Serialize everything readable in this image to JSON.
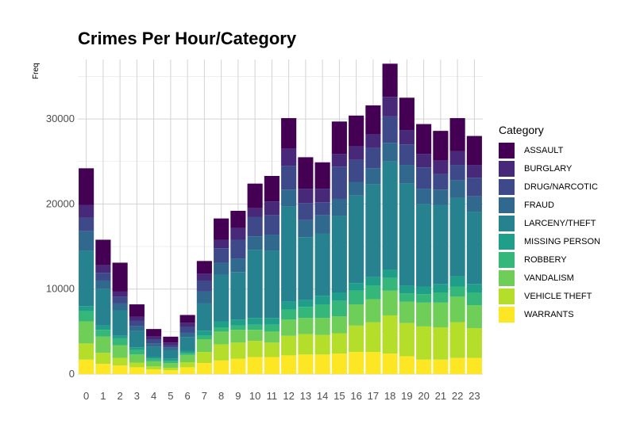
{
  "chart_data": {
    "type": "bar",
    "stacked": true,
    "title": "Crimes Per Hour/Category",
    "xlabel": "",
    "ylabel": "Freq",
    "ylim": [
      0,
      37000
    ],
    "yticks": [
      0,
      10000,
      20000,
      30000
    ],
    "grid": true,
    "legend_title": "Category",
    "legend_position": "right",
    "categories": [
      "0",
      "1",
      "2",
      "3",
      "4",
      "5",
      "6",
      "7",
      "8",
      "9",
      "10",
      "11",
      "12",
      "13",
      "14",
      "15",
      "16",
      "17",
      "18",
      "19",
      "20",
      "21",
      "22",
      "23"
    ],
    "series": [
      {
        "name": "WARRANTS",
        "color": "#fde725",
        "values": [
          1700,
          1200,
          1000,
          800,
          550,
          450,
          800,
          1300,
          1600,
          1800,
          2000,
          2000,
          2200,
          2300,
          2300,
          2400,
          2600,
          2600,
          2400,
          2100,
          1700,
          1700,
          1900,
          1900
        ]
      },
      {
        "name": "VEHICLE THEFT",
        "color": "#b5de2b",
        "values": [
          1900,
          1300,
          900,
          550,
          350,
          300,
          600,
          1300,
          1900,
          1900,
          1900,
          1700,
          2300,
          2400,
          2300,
          2400,
          3100,
          3500,
          4500,
          3900,
          3900,
          3800,
          4200,
          3500
        ]
      },
      {
        "name": "VANDALISM",
        "color": "#6ece58",
        "values": [
          2600,
          1900,
          1500,
          950,
          600,
          550,
          850,
          1500,
          1500,
          1500,
          1300,
          1300,
          1900,
          1900,
          2000,
          2000,
          2500,
          2700,
          2900,
          2500,
          2800,
          2900,
          3000,
          2700
        ]
      },
      {
        "name": "ROBBERY",
        "color": "#35b779",
        "values": [
          1200,
          800,
          800,
          550,
          300,
          250,
          200,
          400,
          500,
          500,
          600,
          800,
          1200,
          1300,
          1600,
          1800,
          1600,
          1600,
          1500,
          1000,
          1000,
          1200,
          1200,
          1500
        ]
      },
      {
        "name": "MISSING PERSON",
        "color": "#1f9e89",
        "values": [
          600,
          500,
          300,
          300,
          200,
          250,
          300,
          600,
          700,
          700,
          800,
          800,
          900,
          800,
          1000,
          1000,
          900,
          1000,
          1000,
          900,
          900,
          1000,
          1200,
          1000
        ]
      },
      {
        "name": "LARCENY/THEFT",
        "color": "#26828e",
        "values": [
          6500,
          4300,
          3000,
          1900,
          1200,
          1000,
          1600,
          3200,
          5500,
          5600,
          8000,
          7900,
          11200,
          7400,
          7300,
          9000,
          10300,
          10900,
          12700,
          12000,
          9700,
          9300,
          9200,
          8500
        ]
      },
      {
        "name": "FRAUD",
        "color": "#31688e",
        "values": [
          2300,
          1000,
          800,
          600,
          400,
          300,
          500,
          1400,
          1400,
          1600,
          1600,
          1900,
          2000,
          2000,
          2200,
          2000,
          1600,
          1900,
          2200,
          2200,
          1800,
          1800,
          2100,
          1800
        ]
      },
      {
        "name": "DRUG/NARCOTIC",
        "color": "#3e4989",
        "values": [
          1600,
          900,
          800,
          600,
          500,
          300,
          700,
          1300,
          1700,
          2200,
          2300,
          2300,
          2800,
          2000,
          1500,
          3800,
          2600,
          2400,
          3100,
          2400,
          2500,
          1800,
          1800,
          2200
        ]
      },
      {
        "name": "BURGLARY",
        "color": "#482878",
        "values": [
          1500,
          900,
          600,
          500,
          300,
          300,
          500,
          800,
          1000,
          1400,
          1000,
          1600,
          2000,
          1700,
          1600,
          1500,
          1600,
          1600,
          2300,
          1700,
          1600,
          1600,
          1600,
          1500
        ]
      },
      {
        "name": "ASSAULT",
        "color": "#440154",
        "values": [
          4300,
          3000,
          3400,
          1450,
          900,
          700,
          900,
          1500,
          2500,
          2000,
          2900,
          3000,
          3600,
          3700,
          3100,
          3800,
          3600,
          3400,
          3900,
          3800,
          3500,
          3500,
          3900,
          3400
        ]
      }
    ]
  }
}
